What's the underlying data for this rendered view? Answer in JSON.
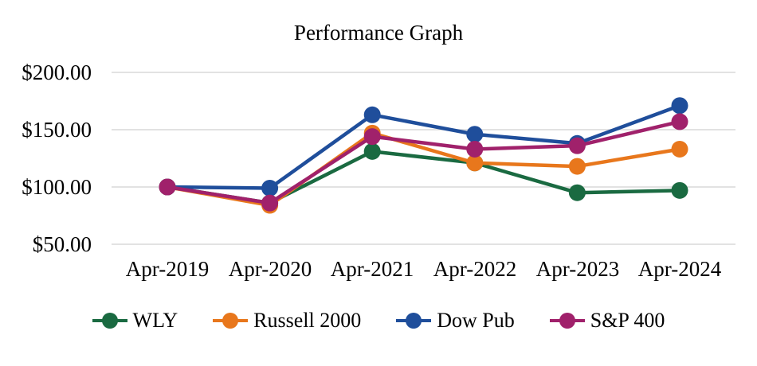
{
  "chart_data": {
    "type": "line",
    "title": "Performance Graph",
    "categories": [
      "Apr-2019",
      "Apr-2020",
      "Apr-2021",
      "Apr-2022",
      "Apr-2023",
      "Apr-2024"
    ],
    "series": [
      {
        "name": "WLY",
        "color": "#1A6A41",
        "values": [
          100,
          86,
          131,
          121,
          95,
          97
        ]
      },
      {
        "name": "Russell 2000",
        "color": "#E8771C",
        "values": [
          100,
          84,
          147,
          121,
          118,
          133
        ]
      },
      {
        "name": "Dow Pub",
        "color": "#1F4E9B",
        "values": [
          100,
          99,
          163,
          146,
          138,
          171
        ]
      },
      {
        "name": "S&P 400",
        "color": "#A0216B",
        "values": [
          100,
          86,
          144,
          133,
          136,
          157
        ]
      }
    ],
    "y_ticks": [
      {
        "label": "$200.00",
        "value": 200
      },
      {
        "label": "$150.00",
        "value": 150
      },
      {
        "label": "$100.00",
        "value": 100
      },
      {
        "label": "$50.00",
        "value": 50
      }
    ],
    "ylim": [
      50,
      200
    ],
    "grid": "horizontal",
    "legend_position": "bottom",
    "gridline_color": "#D9D9D9",
    "text_color": "#000000",
    "background": "#FFFFFF"
  }
}
